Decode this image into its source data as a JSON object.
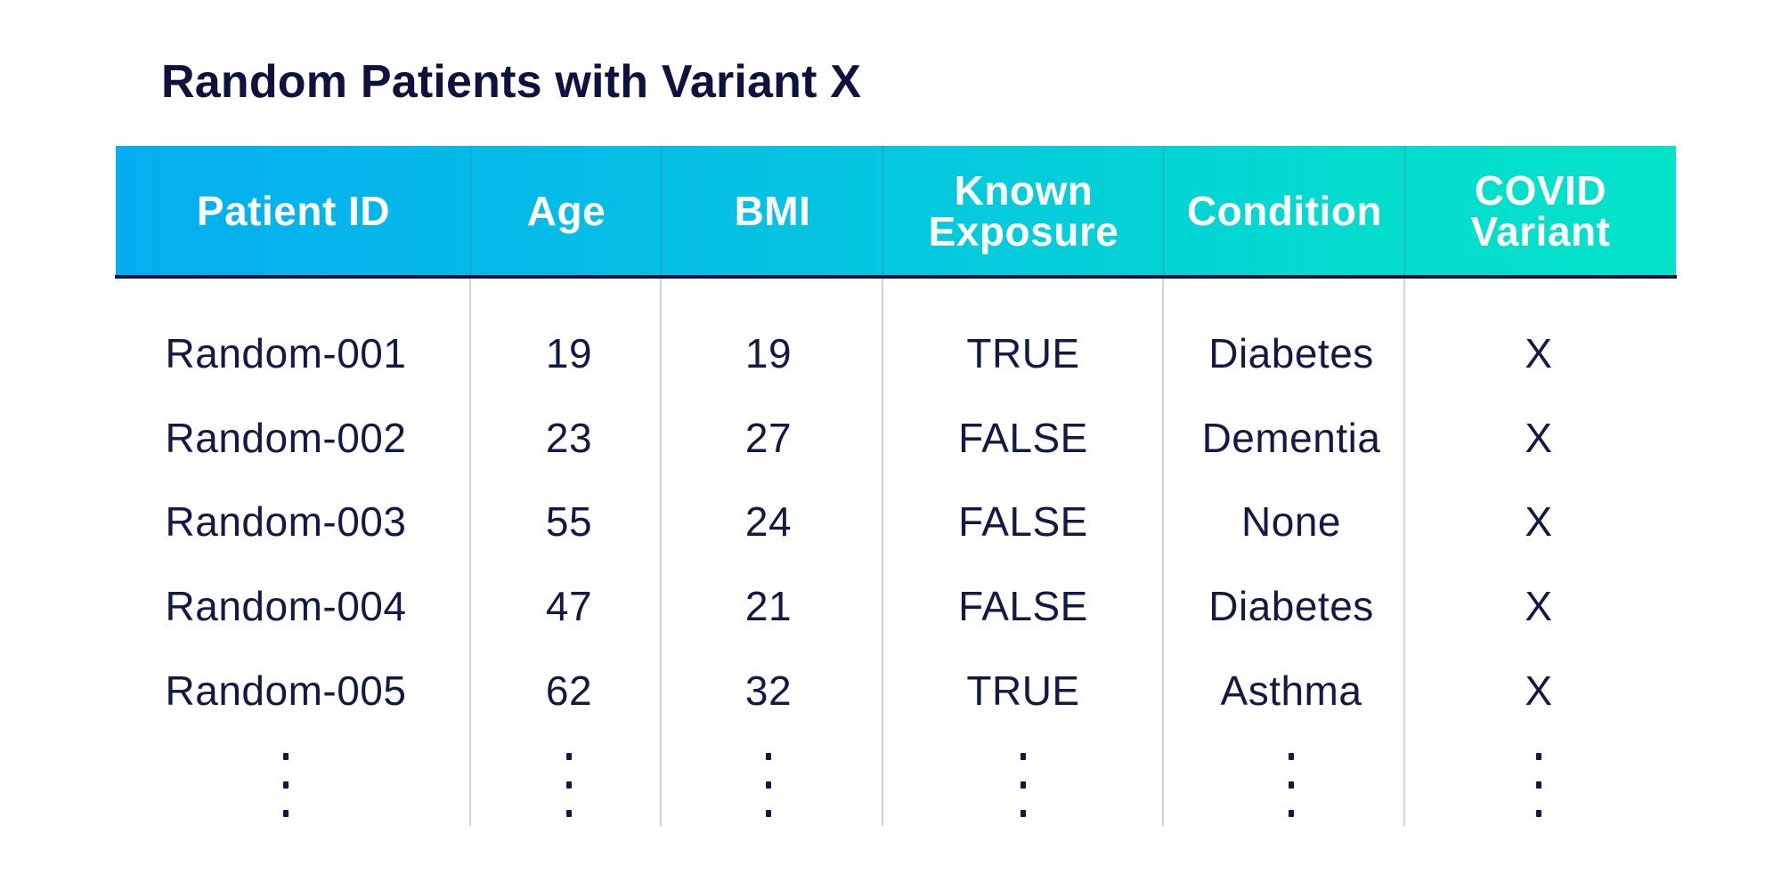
{
  "title": "Random Patients with Variant X",
  "colors": {
    "header_gradient_start": "#05aef0",
    "header_gradient_end": "#03e3c8",
    "text_dark": "#111a45",
    "rule": "#0d123f",
    "column_divider": "#d0d3d8"
  },
  "table": {
    "headers": [
      {
        "key": "patient_id",
        "lines": [
          "Patient ID"
        ]
      },
      {
        "key": "age",
        "lines": [
          "Age"
        ]
      },
      {
        "key": "bmi",
        "lines": [
          "BMI"
        ]
      },
      {
        "key": "known_exposure",
        "lines": [
          "Known",
          "Exposure"
        ]
      },
      {
        "key": "condition",
        "lines": [
          "Condition"
        ]
      },
      {
        "key": "covid_variant",
        "lines": [
          "COVID",
          "Variant"
        ]
      }
    ],
    "rows": [
      [
        "Random-001",
        "19",
        "19",
        "TRUE",
        "Diabetes",
        "X"
      ],
      [
        "Random-002",
        "23",
        "27",
        "FALSE",
        "Dementia",
        "X"
      ],
      [
        "Random-003",
        "55",
        "24",
        "FALSE",
        "None",
        "X"
      ],
      [
        "Random-004",
        "47",
        "21",
        "FALSE",
        "Diabetes",
        "X"
      ],
      [
        "Random-005",
        "62",
        "32",
        "TRUE",
        "Asthma",
        "X"
      ]
    ],
    "continuation_marker": "vertical-ellipsis"
  }
}
